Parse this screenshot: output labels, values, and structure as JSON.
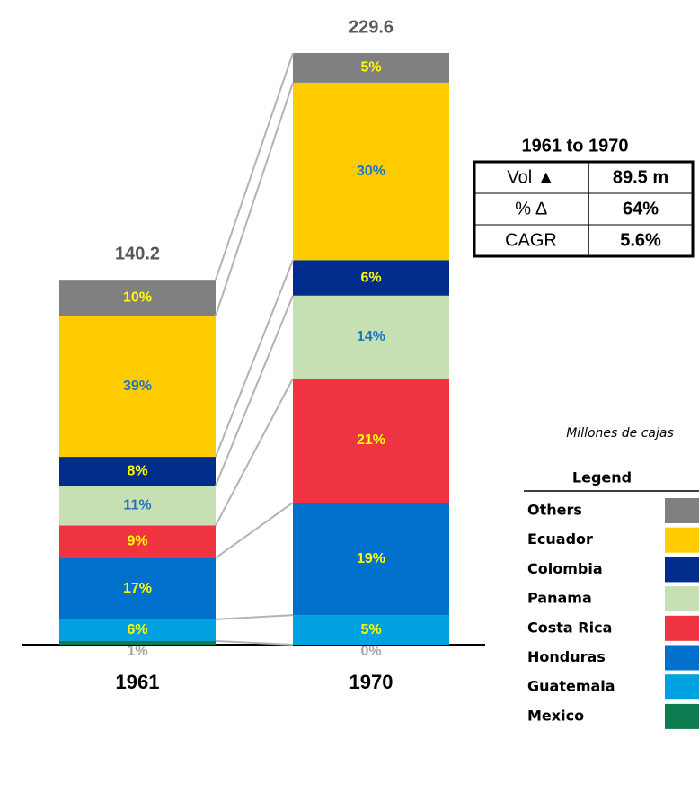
{
  "chart_data": {
    "type": "stacked_bar_100_scaled",
    "categories": [
      "1961",
      "1970"
    ],
    "totals": [
      140.2,
      229.6
    ],
    "note": "Millones de cajas",
    "legend_title": "Legend",
    "series": [
      {
        "name": "Mexico",
        "color": "#0e7a4f",
        "label_color": "#a6a6a6",
        "values": [
          1,
          0
        ],
        "value_labels": [
          "1%",
          "0%"
        ]
      },
      {
        "name": "Guatemala",
        "color": "#00a1e0",
        "label_color": "#ffff00",
        "values": [
          6,
          5
        ],
        "value_labels": [
          "6%",
          "5%"
        ]
      },
      {
        "name": "Honduras",
        "color": "#0070cd",
        "label_color": "#ffff00",
        "values": [
          17,
          19
        ],
        "value_labels": [
          "17%",
          "19%"
        ]
      },
      {
        "name": "Costa Rica",
        "color": "#ef3340",
        "label_color": "#ffff00",
        "values": [
          9,
          21
        ],
        "value_labels": [
          "9%",
          "21%"
        ]
      },
      {
        "name": "Panama",
        "color": "#c6e0b4",
        "label_color": "#1f77c4",
        "values": [
          11,
          14
        ],
        "value_labels": [
          "11%",
          "14%"
        ]
      },
      {
        "name": "Colombia",
        "color": "#002d8c",
        "label_color": "#ffff00",
        "values": [
          8,
          6
        ],
        "value_labels": [
          "8%",
          "6%"
        ]
      },
      {
        "name": "Ecuador",
        "color": "#ffcc00",
        "label_color": "#1f77c4",
        "values": [
          39,
          30
        ],
        "value_labels": [
          "39%",
          "30%"
        ]
      },
      {
        "name": "Others",
        "color": "#808080",
        "label_color": "#ffff00",
        "values": [
          10,
          5
        ],
        "value_labels": [
          "10%",
          "5%"
        ]
      }
    ]
  },
  "table": {
    "title": "1961 to 1970",
    "rows": [
      [
        "Vol ▲",
        "89.5 m"
      ],
      [
        "% ∆",
        "64%"
      ],
      [
        "CAGR",
        "5.6%"
      ]
    ]
  }
}
